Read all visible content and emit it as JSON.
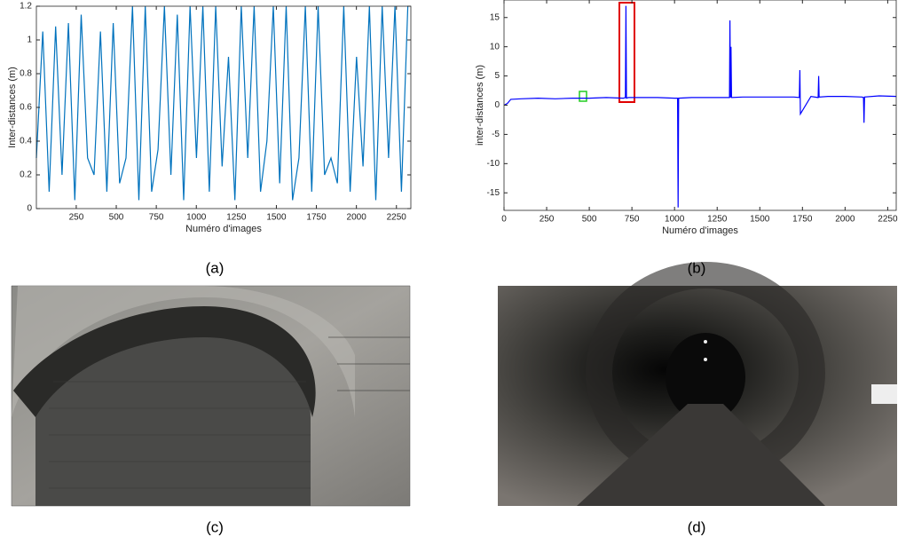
{
  "chart_data": [
    {
      "type": "line",
      "ylabel": "Inter-distances (m)",
      "xlabel": "Numéro d'images",
      "color": "#0072bd",
      "xlim": [
        1,
        2340
      ],
      "ylim": [
        0,
        1.2
      ],
      "xticks": [
        250,
        500,
        750,
        1000,
        1250,
        1500,
        1750,
        2000,
        2250
      ],
      "yticks": [
        0,
        0.2,
        0.4,
        0.6,
        0.8,
        1,
        1.2
      ],
      "x": [
        1,
        41,
        81,
        121,
        161,
        201,
        241,
        281,
        321,
        361,
        401,
        441,
        481,
        521,
        561,
        601,
        641,
        681,
        721,
        761,
        801,
        841,
        881,
        921,
        961,
        1001,
        1041,
        1081,
        1121,
        1161,
        1201,
        1241,
        1281,
        1321,
        1361,
        1401,
        1441,
        1481,
        1521,
        1561,
        1601,
        1641,
        1681,
        1721,
        1761,
        1801,
        1841,
        1881,
        1921,
        1961,
        2001,
        2041,
        2081,
        2121,
        2161,
        2201,
        2241,
        2281,
        2321
      ],
      "values": [
        0.3,
        1.05,
        0.1,
        1.08,
        0.2,
        1.1,
        0.05,
        1.15,
        0.3,
        0.2,
        1.05,
        0.1,
        1.1,
        0.15,
        0.3,
        1.2,
        0.05,
        1.2,
        0.1,
        0.35,
        1.2,
        0.2,
        1.15,
        0.05,
        1.2,
        0.3,
        1.2,
        0.1,
        1.2,
        0.25,
        0.9,
        0.05,
        1.2,
        0.3,
        1.2,
        0.1,
        0.4,
        1.2,
        0.15,
        1.2,
        0.05,
        0.3,
        1.2,
        0.1,
        1.2,
        0.2,
        0.3,
        0.15,
        1.2,
        0.1,
        0.9,
        0.25,
        1.2,
        0.05,
        1.2,
        0.3,
        1.2,
        0.1,
        1.2
      ]
    },
    {
      "type": "line",
      "ylabel": "inter-distances (m)",
      "xlabel": "Numéro d'images",
      "color": "#0000ff",
      "xlim": [
        0,
        2300
      ],
      "ylim": [
        -18,
        18
      ],
      "xticks": [
        0,
        250,
        500,
        750,
        1000,
        1250,
        1500,
        1750,
        2000,
        2250
      ],
      "yticks": [
        -15,
        -10,
        -5,
        0,
        5,
        10,
        15
      ],
      "x": [
        0,
        20,
        40,
        100,
        200,
        300,
        400,
        500,
        600,
        700,
        712,
        715,
        718,
        730,
        800,
        900,
        1000,
        1018,
        1021,
        1024,
        1100,
        1200,
        1300,
        1322,
        1325,
        1328,
        1331,
        1334,
        1400,
        1500,
        1600,
        1700,
        1732,
        1735,
        1738,
        1800,
        1842,
        1845,
        1848,
        1900,
        2000,
        2100,
        2108,
        2111,
        2114,
        2200,
        2300
      ],
      "values": [
        0,
        0.3,
        1,
        1.1,
        1.2,
        1.1,
        1.2,
        1.2,
        1.3,
        1.2,
        1.3,
        17,
        1.2,
        1.3,
        1.3,
        1.3,
        1.2,
        1.2,
        -17.5,
        1.2,
        1.3,
        1.3,
        1.3,
        1.3,
        14.5,
        1.3,
        10,
        1.3,
        1.4,
        1.4,
        1.4,
        1.4,
        1.3,
        6,
        -1.5,
        1.5,
        1.3,
        5,
        1.4,
        1.5,
        1.5,
        1.4,
        1.3,
        -3,
        1.4,
        1.6,
        1.5
      ]
    }
  ],
  "captions": [
    "(a)",
    "(b)",
    "(c)",
    "(d)"
  ]
}
